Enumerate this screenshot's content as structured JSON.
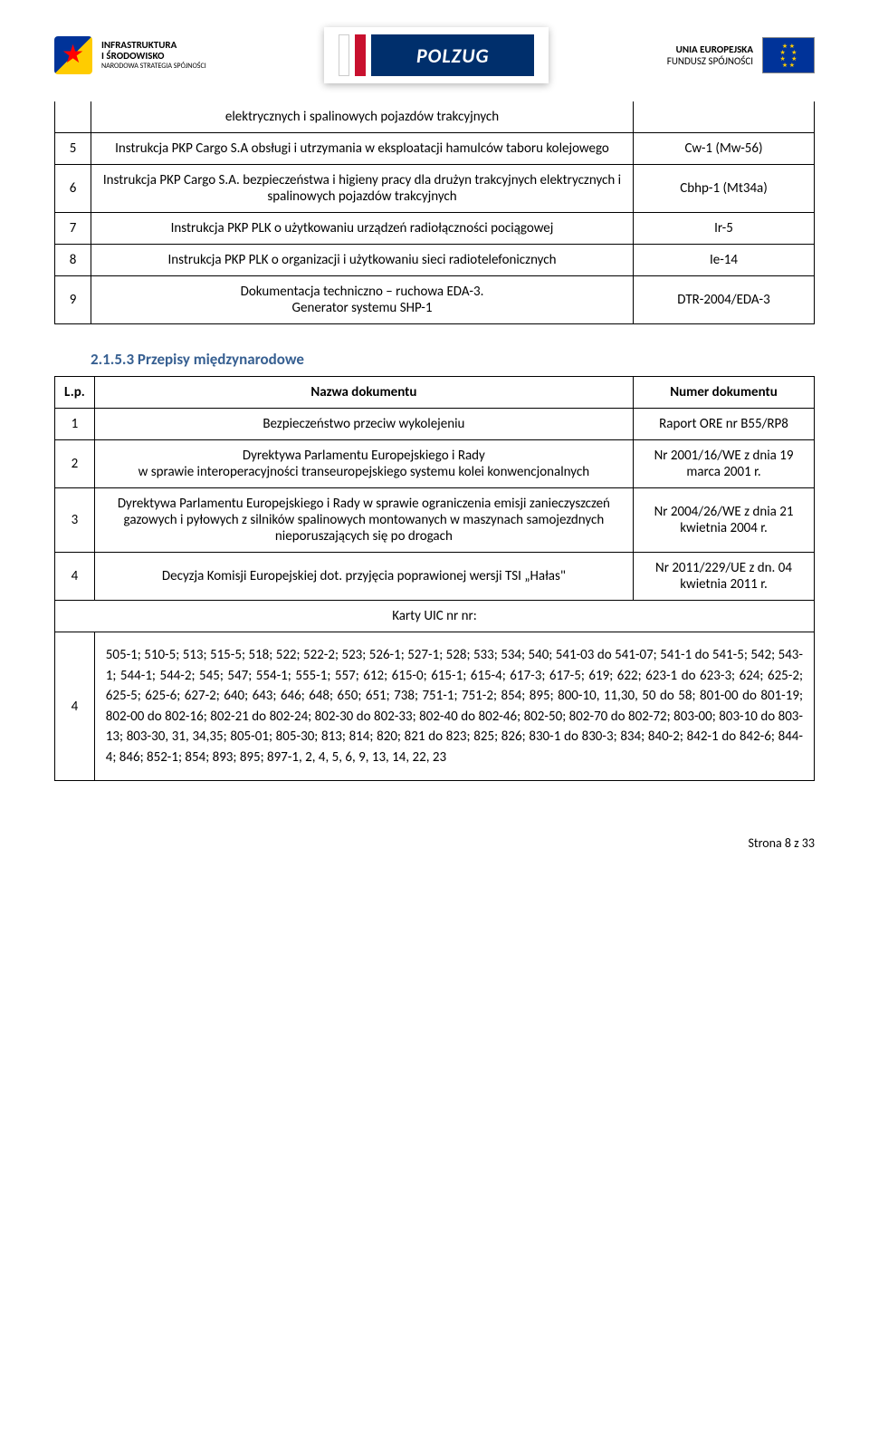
{
  "header": {
    "infra_line1": "INFRASTRUKTURA",
    "infra_line2": "I ŚRODOWISKO",
    "infra_sub": "NARODOWA STRATEGIA SPÓJNOŚCI",
    "polzug": "POLZUG",
    "eu_line1": "UNIA EUROPEJSKA",
    "eu_line2": "FUNDUSZ SPÓJNOŚCI"
  },
  "table1": {
    "rows": [
      {
        "num": "",
        "name": "elektrycznych i spalinowych pojazdów trakcyjnych",
        "code": ""
      },
      {
        "num": "5",
        "name": "Instrukcja PKP Cargo S.A obsługi i utrzymania w eksploatacji hamulców  taboru  kolejowego",
        "code": "Cw-1 (Mw-56)"
      },
      {
        "num": "6",
        "name": "Instrukcja PKP Cargo S.A. bezpieczeństwa i higieny pracy dla drużyn trakcyjnych elektrycznych i spalinowych pojazdów trakcyjnych",
        "code": "Cbhp-1 (Mt34a)"
      },
      {
        "num": "7",
        "name": "Instrukcja PKP PLK o użytkowaniu urządzeń radiołączności pociągowej",
        "code": "Ir-5"
      },
      {
        "num": "8",
        "name": "Instrukcja PKP PLK o organizacji i użytkowaniu sieci radiotelefonicznych",
        "code": "Ie-14"
      },
      {
        "num": "9",
        "name": "Dokumentacja techniczno – ruchowa EDA-3.\nGenerator systemu SHP-1",
        "code": "DTR-2004/EDA-3"
      }
    ]
  },
  "section_heading": "2.1.5.3  Przepisy międzynarodowe",
  "table2": {
    "header": {
      "lp": "L.p.",
      "name": "Nazwa dokumentu",
      "num": "Numer dokumentu"
    },
    "rows": [
      {
        "lp": "1",
        "name": "Bezpieczeństwo przeciw wykolejeniu",
        "num": "Raport ORE nr B55/RP8"
      },
      {
        "lp": "2",
        "name": "Dyrektywa Parlamentu Europejskiego i Rady\nw sprawie interoperacyjności transeuropejskiego systemu kolei konwencjonalnych",
        "num": "Nr 2001/16/WE z dnia 19 marca 2001 r."
      },
      {
        "lp": "3",
        "name": "Dyrektywa Parlamentu Europejskiego i Rady w sprawie ograniczenia emisji zanieczyszczeń gazowych i pyłowych z silników spalinowych montowanych w maszynach samojezdnych nieporuszających się po drogach",
        "num": "Nr 2004/26/WE z dnia 21 kwietnia 2004 r."
      },
      {
        "lp": "4",
        "name": "Decyzja Komisji Europejskiej dot. przyjęcia poprawionej wersji TSI „Hałas\"",
        "num": "Nr 2011/229/UE z dn. 04 kwietnia 2011 r."
      }
    ],
    "karty_label": "Karty UIC nr nr:",
    "uic": {
      "lp": "4",
      "text": "505-1;  510-5; 513; 515-5;   518; 522;  522-2;  523;  526-1;  527-1;  528;  533; 534;  540;  541-03 do 541-07;   541-1 do 541-5;  542; 543-1;   544-1; 544-2;   545;  547;  554-1;  555-1; 557;  612;  615-0;  615-1;  615-4;    617-3;  617-5;  619;  622;  623-1 do 623-3;  624;  625-2;  625-5;  625-6;  627-2; 640;  643;  646;  648;  650;  651; 738;  751-1;  751-2;  854;  895;  800-10, 11,30, 50 do 58; 801-00 do 801-19;  802-00 do 802-16;  802-21 do 802-24; 802-30 do 802-33;  802-40 do 802-46;  802-50;  802-70 do 802-72;  803-00; 803-10 do 803-13;  803-30, 31,  34,35; 805-01;  805-30;  813;  814;  820;  821 do 823;  825; 826;   830-1 do 830-3;  834;  840-2;  842-1 do 842-6;  844-4;  846;  852-1;  854;  893;  895;  897-1, 2, 4, 5, 6, 9, 13, 14, 22, 23"
    }
  },
  "footer": {
    "page": "Strona 8 z 33"
  }
}
